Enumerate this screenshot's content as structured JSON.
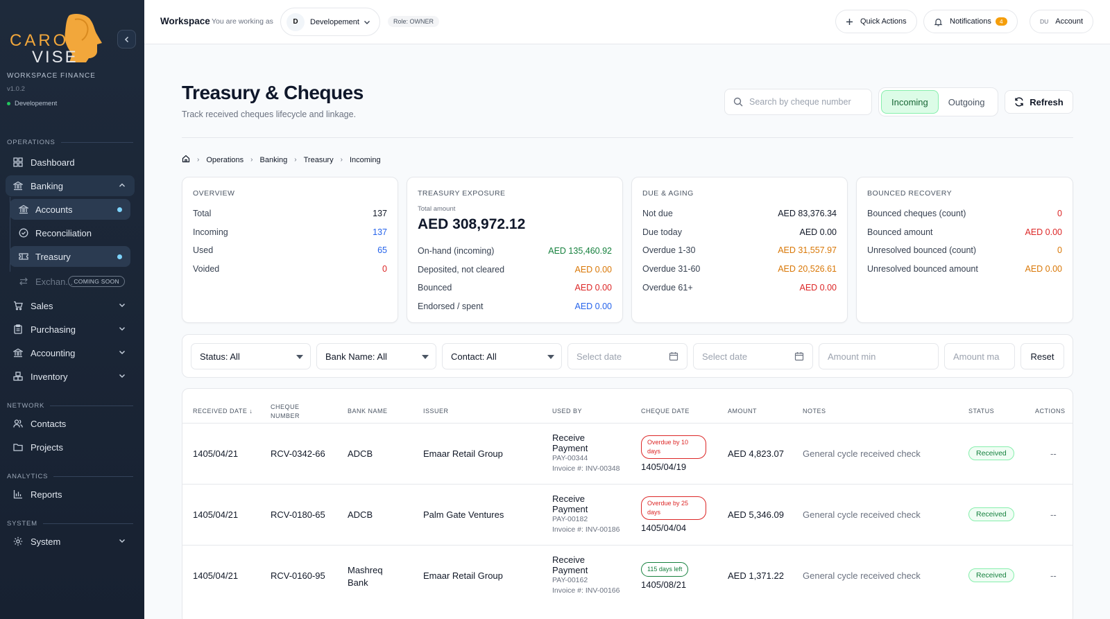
{
  "sidebar": {
    "logo_text": "CARO VISE",
    "workspace_label": "WORKSPACE FINANCE",
    "version": "v1.0.2",
    "environment": "Developement",
    "sections": {
      "operations": "OPERATIONS",
      "network": "NETWORK",
      "analytics": "ANALYTICS",
      "system": "SYSTEM"
    },
    "items": {
      "dashboard": "Dashboard",
      "banking": "Banking",
      "accounts": "Accounts",
      "reconciliation": "Reconciliation",
      "treasury": "Treasury",
      "exchange": "Exchan...",
      "coming_soon": "COMING SOON",
      "sales": "Sales",
      "purchasing": "Purchasing",
      "accounting": "Accounting",
      "inventory": "Inventory",
      "contacts": "Contacts",
      "projects": "Projects",
      "reports": "Reports",
      "system": "System"
    }
  },
  "topbar": {
    "title": "Workspace",
    "working_as": "You are working as",
    "workspace_initial": "D",
    "workspace_name": "Developement",
    "role": "Role: OWNER",
    "quick_actions": "Quick Actions",
    "notifications": "Notifications",
    "notification_count": "4",
    "user_initials": "DU",
    "account": "Account"
  },
  "page": {
    "title": "Treasury & Cheques",
    "subtitle": "Track received cheques lifecycle and linkage.",
    "search_placeholder": "Search by cheque number",
    "tab_incoming": "Incoming",
    "tab_outgoing": "Outgoing",
    "refresh": "Refresh",
    "breadcrumb": [
      "Operations",
      "Banking",
      "Treasury",
      "Incoming"
    ]
  },
  "overview": {
    "title": "OVERVIEW",
    "rows": [
      {
        "label": "Total",
        "value": "137"
      },
      {
        "label": "Incoming",
        "value": "137"
      },
      {
        "label": "Used",
        "value": "65"
      },
      {
        "label": "Voided",
        "value": "0"
      }
    ]
  },
  "exposure": {
    "title": "TREASURY EXPOSURE",
    "total_label": "Total amount",
    "total_value": "AED 308,972.12",
    "rows": [
      {
        "label": "On-hand (incoming)",
        "value": "AED 135,460.92"
      },
      {
        "label": "Deposited, not cleared",
        "value": "AED 0.00"
      },
      {
        "label": "Bounced",
        "value": "AED 0.00"
      },
      {
        "label": "Endorsed / spent",
        "value": "AED 0.00"
      }
    ]
  },
  "aging": {
    "title": "DUE & AGING",
    "rows": [
      {
        "label": "Not due",
        "value": "AED 83,376.34"
      },
      {
        "label": "Due today",
        "value": "AED 0.00"
      },
      {
        "label": "Overdue 1-30",
        "value": "AED 31,557.97"
      },
      {
        "label": "Overdue 31-60",
        "value": "AED 20,526.61"
      },
      {
        "label": "Overdue 61+",
        "value": "AED 0.00"
      }
    ]
  },
  "bounced": {
    "title": "BOUNCED RECOVERY",
    "rows": [
      {
        "label": "Bounced cheques (count)",
        "value": "0"
      },
      {
        "label": "Bounced amount",
        "value": "AED 0.00"
      },
      {
        "label": "Unresolved bounced (count)",
        "value": "0"
      },
      {
        "label": "Unresolved bounced amount",
        "value": "AED 0.00"
      }
    ]
  },
  "filters": {
    "status": "Status: All",
    "bank": "Bank Name: All",
    "contact": "Contact: All",
    "date_from_placeholder": "Select date",
    "date_to_placeholder": "Select date",
    "amount_min_placeholder": "Amount min",
    "amount_max_placeholder": "Amount ma",
    "reset": "Reset"
  },
  "table": {
    "headers": {
      "received_date": "RECEIVED DATE ↓",
      "cheque_number": "CHEQUE NUMBER",
      "bank_name": "BANK NAME",
      "issuer": "ISSUER",
      "used_by": "USED BY",
      "cheque_date": "CHEQUE DATE",
      "amount": "AMOUNT",
      "notes": "NOTES",
      "status": "STATUS",
      "actions": "ACTIONS"
    },
    "rows": [
      {
        "received_date": "1405/04/21",
        "cheque_number": "RCV-0342-66",
        "bank_name": "ADCB",
        "issuer": "Emaar Retail Group",
        "used_by_title": "Receive Payment",
        "used_by_ref": "PAY-00344",
        "used_by_invoice": "Invoice #: INV-00348",
        "due_badge": "Overdue by 10 days",
        "cheque_date": "1405/04/19",
        "amount": "AED 4,823.07",
        "notes": "General cycle received check",
        "status": "Received",
        "actions": "--"
      },
      {
        "received_date": "1405/04/21",
        "cheque_number": "RCV-0180-65",
        "bank_name": "ADCB",
        "issuer": "Palm Gate Ventures",
        "used_by_title": "Receive Payment",
        "used_by_ref": "PAY-00182",
        "used_by_invoice": "Invoice #: INV-00186",
        "due_badge": "Overdue by 25 days",
        "cheque_date": "1405/04/04",
        "amount": "AED 5,346.09",
        "notes": "General cycle received check",
        "status": "Received",
        "actions": "--"
      },
      {
        "received_date": "1405/04/21",
        "cheque_number": "RCV-0160-95",
        "bank_name": "Mashreq Bank",
        "issuer": "Emaar Retail Group",
        "used_by_title": "Receive Payment",
        "used_by_ref": "PAY-00162",
        "used_by_invoice": "Invoice #: INV-00166",
        "due_badge": "115 days left",
        "cheque_date": "1405/08/21",
        "amount": "AED 1,371.22",
        "notes": "General cycle received check",
        "status": "Received",
        "actions": "--"
      }
    ]
  }
}
